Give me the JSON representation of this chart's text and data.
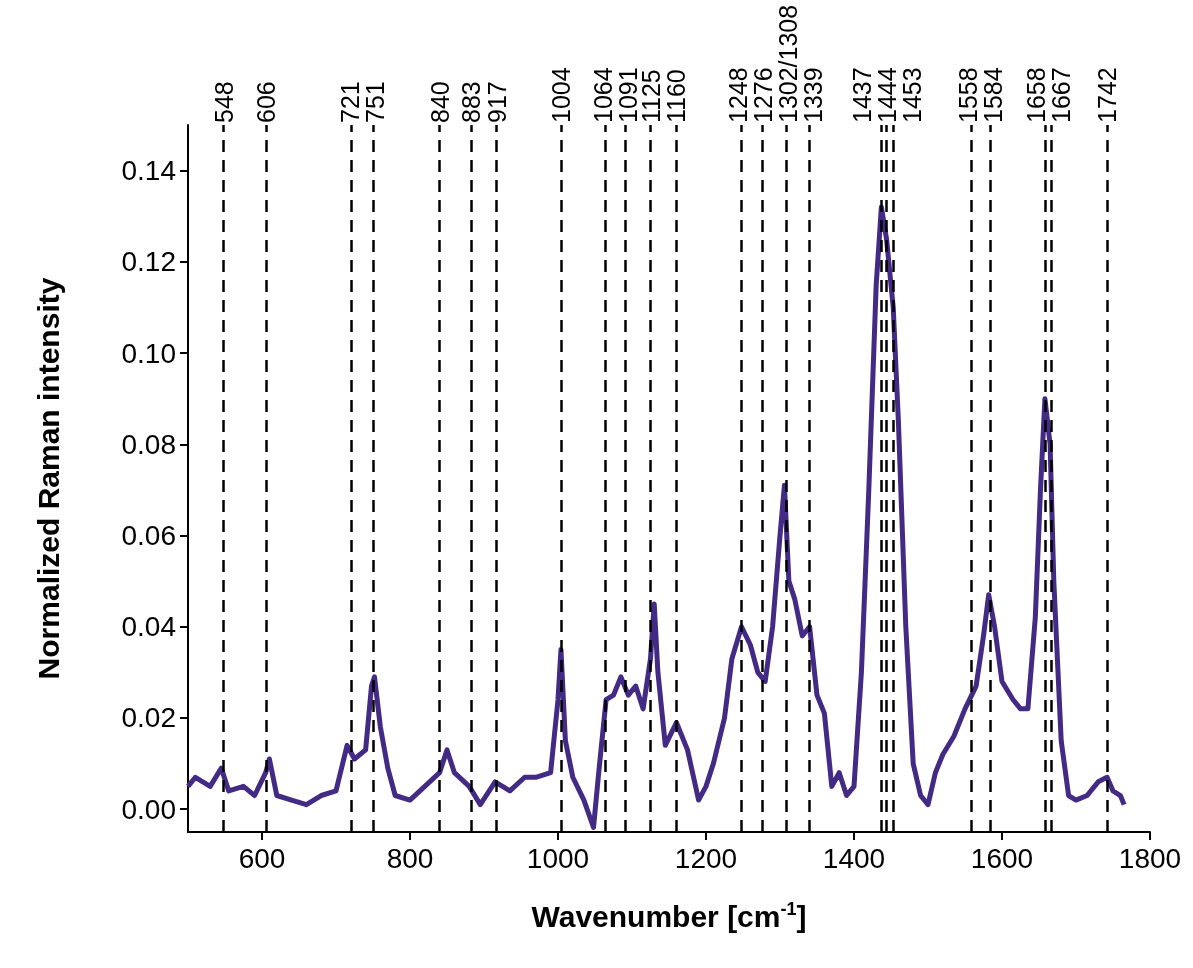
{
  "chart_data": {
    "type": "line",
    "xlabel": "Wavenumber [cm$^{-1}$]",
    "ylabel": "Normalized Raman intensity",
    "xlim": [
      500,
      1800
    ],
    "xticks": [
      600,
      800,
      1000,
      1200,
      1400,
      1600,
      1800
    ],
    "ylim": [
      -0.005,
      0.15
    ],
    "yticks": [
      {
        "value": 0,
        "label": "0.00"
      },
      {
        "value": 0.02,
        "label": "0.02"
      },
      {
        "value": 0.04,
        "label": "0.04"
      },
      {
        "value": 0.06,
        "label": "0.06"
      },
      {
        "value": 0.08,
        "label": "0.08"
      },
      {
        "value": 0.1,
        "label": "0.10"
      },
      {
        "value": 0.12,
        "label": "0.12"
      },
      {
        "value": 0.14,
        "label": "0.14"
      }
    ],
    "grid": false,
    "x": [
      500,
      510,
      520,
      530,
      545,
      555,
      575,
      590,
      605,
      610,
      620,
      640,
      660,
      680,
      700,
      715,
      725,
      740,
      748,
      752,
      760,
      770,
      780,
      800,
      820,
      840,
      850,
      860,
      880,
      895,
      915,
      935,
      955,
      970,
      990,
      1000,
      1004,
      1010,
      1020,
      1035,
      1048,
      1055,
      1065,
      1075,
      1085,
      1095,
      1105,
      1115,
      1125,
      1130,
      1135,
      1145,
      1160,
      1175,
      1190,
      1200,
      1210,
      1225,
      1235,
      1248,
      1260,
      1270,
      1280,
      1290,
      1300,
      1306,
      1312,
      1320,
      1330,
      1340,
      1350,
      1360,
      1370,
      1380,
      1390,
      1400,
      1410,
      1420,
      1430,
      1437,
      1444,
      1453,
      1460,
      1470,
      1480,
      1490,
      1500,
      1510,
      1520,
      1535,
      1550,
      1565,
      1575,
      1582,
      1590,
      1600,
      1615,
      1625,
      1635,
      1645,
      1652,
      1658,
      1665,
      1670,
      1680,
      1690,
      1700,
      1715,
      1730,
      1742,
      1750,
      1760,
      1765
    ],
    "series": [
      {
        "color": "#432a85",
        "values": [
          0.005,
          0.007,
          0.006,
          0.005,
          0.009,
          0.004,
          0.005,
          0.003,
          0.008,
          0.011,
          0.003,
          0.002,
          0.001,
          0.003,
          0.004,
          0.014,
          0.011,
          0.013,
          0.027,
          0.029,
          0.018,
          0.009,
          0.003,
          0.002,
          0.005,
          0.008,
          0.013,
          0.008,
          0.005,
          0.001,
          0.006,
          0.004,
          0.007,
          0.007,
          0.008,
          0.024,
          0.035,
          0.015,
          0.007,
          0.002,
          -0.004,
          0.008,
          0.024,
          0.025,
          0.029,
          0.025,
          0.027,
          0.022,
          0.033,
          0.045,
          0.03,
          0.014,
          0.019,
          0.013,
          0.002,
          0.005,
          0.01,
          0.02,
          0.033,
          0.04,
          0.036,
          0.03,
          0.028,
          0.04,
          0.06,
          0.071,
          0.05,
          0.046,
          0.038,
          0.04,
          0.025,
          0.021,
          0.005,
          0.008,
          0.003,
          0.005,
          0.03,
          0.07,
          0.115,
          0.132,
          0.125,
          0.11,
          0.085,
          0.04,
          0.01,
          0.003,
          0.001,
          0.008,
          0.012,
          0.016,
          0.022,
          0.027,
          0.038,
          0.047,
          0.04,
          0.028,
          0.024,
          0.022,
          0.022,
          0.042,
          0.07,
          0.09,
          0.08,
          0.05,
          0.015,
          0.003,
          0.002,
          0.003,
          0.006,
          0.007,
          0.004,
          0.003,
          0.001
        ]
      }
    ],
    "ref_lines": [
      {
        "axis": "x",
        "value": 548,
        "label": "548",
        "color": "#000000",
        "line_style": "dashed"
      },
      {
        "axis": "x",
        "value": 606,
        "label": "606",
        "color": "#000000",
        "line_style": "dashed"
      },
      {
        "axis": "x",
        "value": 721,
        "label": "721",
        "color": "#000000",
        "line_style": "dashed"
      },
      {
        "axis": "x",
        "value": 751,
        "label": "751",
        "color": "#000000",
        "line_style": "dashed"
      },
      {
        "axis": "x",
        "value": 840,
        "label": "840",
        "color": "#000000",
        "line_style": "dashed"
      },
      {
        "axis": "x",
        "value": 883,
        "label": "883",
        "color": "#000000",
        "line_style": "dashed"
      },
      {
        "axis": "x",
        "value": 917,
        "label": "917",
        "color": "#000000",
        "line_style": "dashed"
      },
      {
        "axis": "x",
        "value": 1004,
        "label": "1004",
        "color": "#000000",
        "line_style": "dashed"
      },
      {
        "axis": "x",
        "value": 1064,
        "label": "1064",
        "color": "#000000",
        "line_style": "dashed"
      },
      {
        "axis": "x",
        "value": 1091,
        "label": "1091",
        "color": "#000000",
        "line_style": "dashed"
      },
      {
        "axis": "x",
        "value": 1125,
        "label": "1125",
        "color": "#000000",
        "line_style": "dashed"
      },
      {
        "axis": "x",
        "value": 1160,
        "label": "1160",
        "color": "#000000",
        "line_style": "dashed"
      },
      {
        "axis": "x",
        "value": 1248,
        "label": "1248",
        "color": "#000000",
        "line_style": "dashed"
      },
      {
        "axis": "x",
        "value": 1276,
        "label": "1276",
        "color": "#000000",
        "line_style": "dashed"
      },
      {
        "axis": "x",
        "value": 1308,
        "label": "1302/1308",
        "color": "#000000",
        "line_style": "dashed"
      },
      {
        "axis": "x",
        "value": 1339,
        "label": "1339",
        "color": "#000000",
        "line_style": "dashed"
      },
      {
        "axis": "x",
        "value": 1437,
        "label": "1437",
        "color": "#000000",
        "line_style": "dashed"
      },
      {
        "axis": "x",
        "value": 1444,
        "label": "1444",
        "color": "#000000",
        "line_style": "dashed"
      },
      {
        "axis": "x",
        "value": 1453,
        "label": "1453",
        "color": "#000000",
        "line_style": "dashed"
      },
      {
        "axis": "x",
        "value": 1558,
        "label": "1558",
        "color": "#000000",
        "line_style": "dashed"
      },
      {
        "axis": "x",
        "value": 1584,
        "label": "1584",
        "color": "#000000",
        "line_style": "dashed"
      },
      {
        "axis": "x",
        "value": 1658,
        "label": "1658",
        "color": "#000000",
        "line_style": "dashed"
      },
      {
        "axis": "x",
        "value": 1667,
        "label": "1667",
        "color": "#000000",
        "line_style": "dashed"
      },
      {
        "axis": "x",
        "value": 1742,
        "label": "1742",
        "color": "#000000",
        "line_style": "dashed"
      }
    ]
  }
}
